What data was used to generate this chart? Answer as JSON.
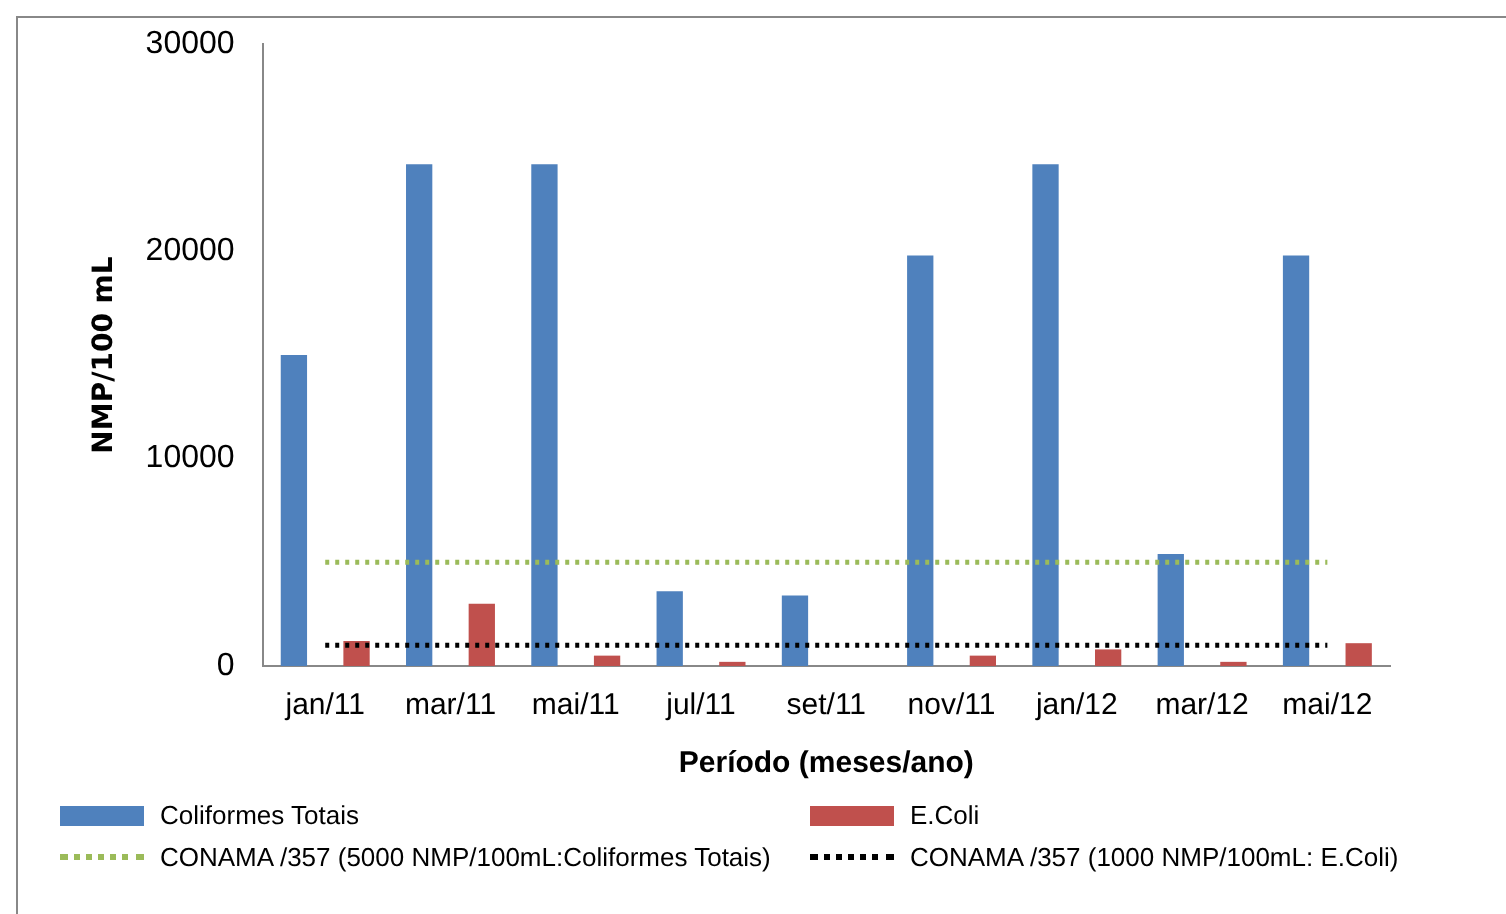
{
  "chart_data": {
    "type": "bar",
    "xlabel": "Período (meses/ano)",
    "ylabel": "NMP/100 mL",
    "categories": [
      "jan/11",
      "mar/11",
      "mai/11",
      "jul/11",
      "set/11",
      "nov/11",
      "jan/12",
      "mar/12",
      "mai/12"
    ],
    "series": [
      {
        "name": "Coliformes Totais",
        "color": "#4f81bd",
        "values": [
          15000,
          24200,
          24200,
          3600,
          3400,
          19800,
          24200,
          5400,
          19800
        ]
      },
      {
        "name": "E.Coli",
        "color": "#c0504d",
        "values": [
          1200,
          3000,
          500,
          200,
          0,
          500,
          800,
          200,
          1100
        ]
      },
      {
        "name": "CONAMA /357 (5000 NMP/100mL:Coliformes Totais)",
        "type": "line",
        "color": "#9bbb59",
        "line_style": "dotted",
        "marker": "none",
        "values": [
          5000,
          5000,
          5000,
          5000,
          5000,
          5000,
          5000,
          5000,
          5000
        ]
      },
      {
        "name": "CONAMA /357 (1000 NMP/100mL: E.Coli)",
        "type": "line",
        "color": "#000000",
        "line_style": "dotted",
        "marker": "none",
        "values": [
          1000,
          1000,
          1000,
          1000,
          1000,
          1000,
          1000,
          1000,
          1000
        ]
      }
    ],
    "ylim": [
      0,
      30000
    ],
    "yticks": [
      0,
      10000,
      20000,
      30000
    ],
    "grid": false,
    "legend": "bottom"
  }
}
